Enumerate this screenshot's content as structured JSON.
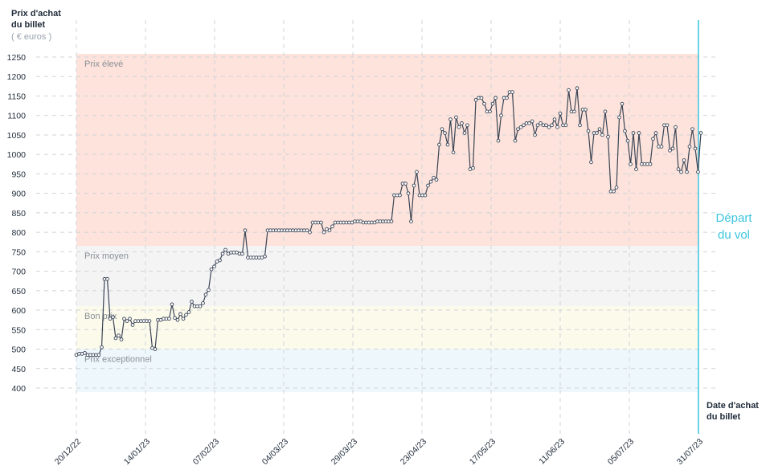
{
  "y_title_line1": "Prix d'achat",
  "y_title_line2": "du billet",
  "y_unit": "( € euros )",
  "x_title_line1": "Date d'achat",
  "x_title_line2": "du billet",
  "depart_line1": "Départ",
  "depart_line2": "du vol",
  "colors": {
    "band_high": "#fde3db",
    "band_mid": "#f4f4f4",
    "band_good": "#fbfaeb",
    "band_exceptional": "#eef8fc",
    "line": "#3b4556",
    "depart": "#3cc6de"
  },
  "chart_data": {
    "type": "line",
    "ylim": [
      400,
      1250
    ],
    "y_ticks": [
      400,
      450,
      500,
      550,
      600,
      650,
      700,
      750,
      800,
      850,
      900,
      950,
      1000,
      1050,
      1100,
      1150,
      1200,
      1250
    ],
    "x_tick_labels": [
      "20/12/22",
      "14/01/23",
      "07/02/23",
      "04/03/23",
      "29/03/23",
      "23/04/23",
      "17/05/23",
      "11/06/23",
      "05/07/23",
      "31/07/23"
    ],
    "bands": [
      {
        "label": "Prix élevé",
        "from": 765,
        "to": 1250
      },
      {
        "label": "Prix moyen",
        "from": 610,
        "to": 765
      },
      {
        "label": "Bon prix",
        "from": 500,
        "to": 610
      },
      {
        "label": "Prix exceptionnel",
        "from": 400,
        "to": 500
      }
    ],
    "depart_label": "Départ du vol",
    "series": [
      {
        "values": [
          485,
          488,
          488,
          490,
          485,
          485,
          485,
          485,
          485,
          505,
          680,
          680,
          578,
          582,
          528,
          535,
          525,
          578,
          572,
          578,
          562,
          572,
          572,
          572,
          572,
          572,
          572,
          503,
          500,
          575,
          575,
          578,
          578,
          578,
          615,
          580,
          575,
          590,
          578,
          588,
          595,
          622,
          610,
          610,
          610,
          618,
          640,
          652,
          705,
          712,
          725,
          728,
          745,
          755,
          745,
          748,
          748,
          748,
          745,
          745,
          805,
          735,
          735,
          735,
          735,
          735,
          735,
          738,
          805,
          805,
          805,
          805,
          805,
          805,
          805,
          805,
          805,
          805,
          805,
          805,
          805,
          805,
          805,
          800,
          825,
          825,
          825,
          825,
          800,
          808,
          805,
          815,
          825,
          825,
          825,
          825,
          825,
          825,
          825,
          828,
          828,
          828,
          825,
          825,
          825,
          825,
          825,
          828,
          828,
          828,
          828,
          828,
          828,
          895,
          895,
          895,
          925,
          925,
          900,
          828,
          920,
          955,
          895,
          895,
          895,
          920,
          930,
          940,
          935,
          1025,
          1065,
          1055,
          1025,
          1090,
          1005,
          1095,
          1070,
          1080,
          1055,
          1075,
          962,
          965,
          1140,
          1145,
          1145,
          1130,
          1110,
          1110,
          1130,
          1145,
          1035,
          1100,
          1145,
          1145,
          1160,
          1160,
          1035,
          1065,
          1070,
          1075,
          1080,
          1080,
          1085,
          1050,
          1075,
          1080,
          1075,
          1075,
          1070,
          1075,
          1090,
          1070,
          1105,
          1075,
          1075,
          1165,
          1110,
          1110,
          1170,
          1075,
          1115,
          1115,
          1060,
          980,
          1055,
          1055,
          1065,
          1050,
          1110,
          1045,
          905,
          905,
          915,
          1095,
          1130,
          1060,
          1035,
          975,
          1055,
          962,
          1055,
          975,
          975,
          975,
          975,
          1040,
          1055,
          1020,
          1020,
          1075,
          1075,
          1010,
          1015,
          1070,
          962,
          955,
          985,
          955,
          1020,
          1065,
          1015,
          955,
          1055
        ]
      }
    ]
  }
}
